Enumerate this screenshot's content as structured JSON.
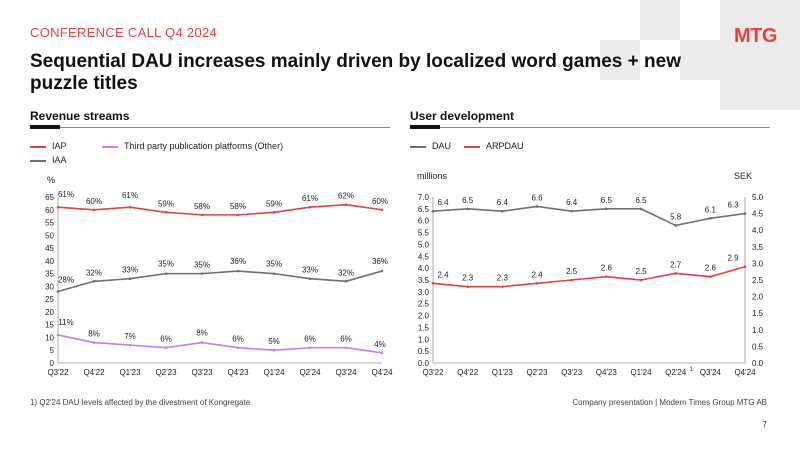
{
  "header": {
    "kicker": "CONFERENCE CALL Q4 2024",
    "logo": "MTG",
    "title": "Sequential DAU increases mainly driven by localized word games + new puzzle titles"
  },
  "colors": {
    "accent": "#e8403f",
    "iap": "#e8403f",
    "third_party": "#c77df0",
    "iaa": "#707070",
    "dau": "#707070",
    "arpdau": "#e8403f"
  },
  "footer": {
    "footnote": "1) Q2'24 DAU levels affected by the divestment of Kongregate",
    "source": "Company presentation | Modern Times Group MTG AB",
    "page": "7"
  },
  "chart_data": [
    {
      "title": "Revenue streams",
      "type": "line",
      "ylabel": "%",
      "categories": [
        "Q3'22",
        "Q4'22",
        "Q1'23",
        "Q2'23",
        "Q3'23",
        "Q4'23",
        "Q1'24",
        "Q2'24",
        "Q3'24",
        "Q4'24"
      ],
      "ylim": [
        0,
        65
      ],
      "yticks": [
        "0",
        "5",
        "10",
        "15",
        "20",
        "25",
        "30",
        "35",
        "40",
        "45",
        "50",
        "55",
        "60",
        "65"
      ],
      "series": [
        {
          "name": "IAP",
          "values": [
            61,
            60,
            61,
            59,
            58,
            58,
            59,
            61,
            62,
            60
          ],
          "labels": [
            "61%",
            "60%",
            "61%",
            "59%",
            "58%",
            "58%",
            "59%",
            "61%",
            "62%",
            "60%"
          ]
        },
        {
          "name": "Third party publication platforms (Other)",
          "values": [
            11,
            8,
            7,
            6,
            8,
            6,
            5,
            6,
            6,
            4
          ],
          "labels": [
            "11%",
            "8%",
            "7%",
            "6%",
            "8%",
            "6%",
            "5%",
            "6%",
            "6%",
            "4%"
          ]
        },
        {
          "name": "IAA",
          "values": [
            28,
            32,
            33,
            35,
            35,
            36,
            35,
            33,
            32,
            36
          ],
          "labels": [
            "28%",
            "32%",
            "33%",
            "35%",
            "35%",
            "36%",
            "35%",
            "33%",
            "32%",
            "36%"
          ]
        }
      ]
    },
    {
      "title": "User development",
      "type": "line",
      "ylabel": "millions",
      "y2label": "SEK",
      "categories": [
        "Q3'22",
        "Q4'22",
        "Q1'23",
        "Q2'23",
        "Q3'23",
        "Q4'23",
        "Q1'24",
        "Q2'24",
        "Q3'24",
        "Q4'24"
      ],
      "q2_24_marker": "1",
      "ylim": [
        0,
        7
      ],
      "y2lim": [
        0,
        5
      ],
      "yticks": [
        "0.0",
        "0.5",
        "1.0",
        "1.5",
        "2.0",
        "2.5",
        "3.0",
        "3.5",
        "4.0",
        "4.5",
        "5.0",
        "5.5",
        "6.0",
        "6.5",
        "7.0"
      ],
      "y2ticks": [
        "0.0",
        "0.5",
        "1.0",
        "1.5",
        "2.0",
        "2.5",
        "3.0",
        "3.5",
        "4.0",
        "4.5",
        "5.0"
      ],
      "series": [
        {
          "name": "DAU",
          "axis": "left",
          "values": [
            6.4,
            6.5,
            6.4,
            6.6,
            6.4,
            6.5,
            6.5,
            5.8,
            6.1,
            6.3
          ],
          "labels": [
            "6.4",
            "6.5",
            "6.4",
            "6.6",
            "6.4",
            "6.5",
            "6.5",
            "5.8",
            "6.1",
            "6.3"
          ]
        },
        {
          "name": "ARPDAU",
          "axis": "right",
          "values": [
            2.4,
            2.3,
            2.3,
            2.4,
            2.5,
            2.6,
            2.5,
            2.7,
            2.6,
            2.9
          ],
          "labels": [
            "2.4",
            "2.3",
            "2.3",
            "2.4",
            "2.5",
            "2.6",
            "2.5",
            "2.7",
            "2.6",
            "2.9"
          ]
        }
      ]
    }
  ]
}
